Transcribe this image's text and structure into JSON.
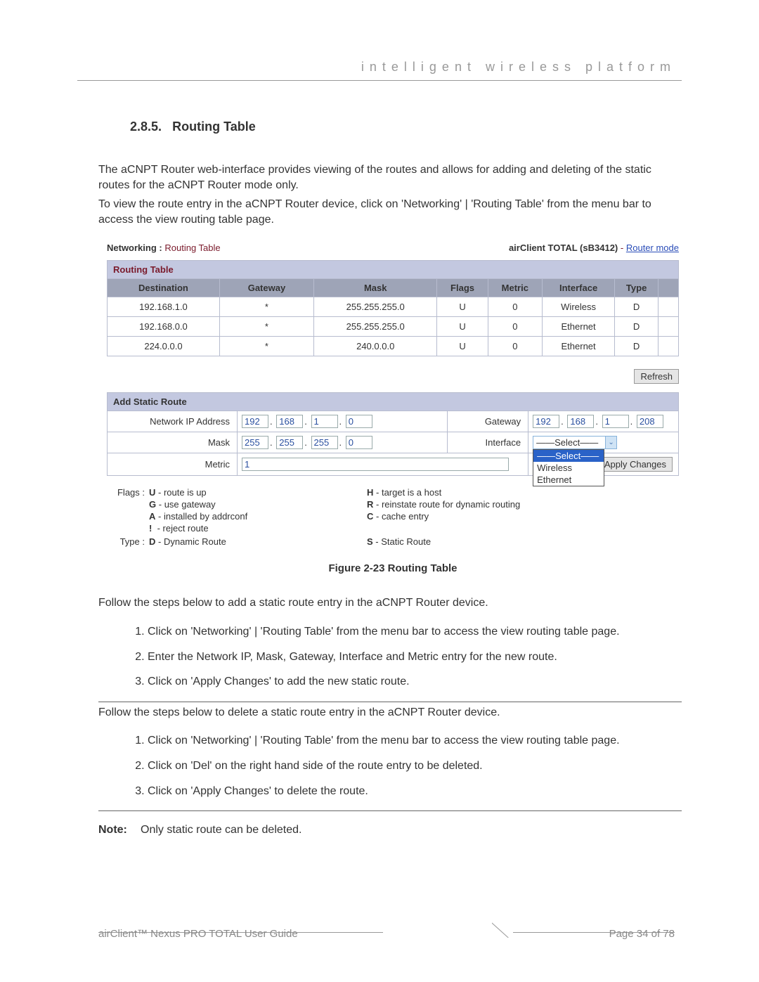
{
  "header": {
    "tagline": "intelligent  wireless  platform"
  },
  "section": {
    "number": "2.8.5.",
    "title": "Routing Table",
    "para1": "The aCNPT Router web-interface provides viewing of the routes and allows for adding and deleting of the static routes for the aCNPT Router mode only.",
    "para2": "To view the route entry in the aCNPT Router device, click on 'Networking' | 'Routing Table' from the menu bar to access the view routing table page."
  },
  "screenshot": {
    "breadcrumb_label": "Networking :",
    "breadcrumb_page": "Routing Table",
    "device": "airClient TOTAL (sB3412)",
    "mode_sep": " - ",
    "mode_link": "Router mode",
    "routing_table": {
      "title": "Routing Table",
      "columns": [
        "Destination",
        "Gateway",
        "Mask",
        "Flags",
        "Metric",
        "Interface",
        "Type",
        ""
      ],
      "rows": [
        [
          "192.168.1.0",
          "*",
          "255.255.255.0",
          "U",
          "0",
          "Wireless",
          "D",
          ""
        ],
        [
          "192.168.0.0",
          "*",
          "255.255.255.0",
          "U",
          "0",
          "Ethernet",
          "D",
          ""
        ],
        [
          "224.0.0.0",
          "*",
          "240.0.0.0",
          "U",
          "0",
          "Ethernet",
          "D",
          ""
        ]
      ],
      "col_widths": [
        "155px",
        "130px",
        "170px",
        "70px",
        "75px",
        "100px",
        "60px",
        "28px"
      ]
    },
    "refresh_btn": "Refresh",
    "add_route": {
      "title": "Add Static Route",
      "network_ip_label": "Network IP Address",
      "gateway_label": "Gateway",
      "mask_label": "Mask",
      "interface_label": "Interface",
      "metric_label": "Metric",
      "network_ip": [
        "192",
        "168",
        "1",
        "0"
      ],
      "gateway": [
        "192",
        "168",
        "1",
        "208"
      ],
      "mask": [
        "255",
        "255",
        "255",
        "0"
      ],
      "metric": "1",
      "interface_selected": "——Select——",
      "interface_options": [
        "——Select——",
        "Wireless",
        "Ethernet"
      ],
      "apply_btn": "Apply Changes"
    },
    "legend": {
      "flags_label": "Flags :",
      "type_label": "Type :",
      "flags": [
        {
          "k": "U",
          "v": "route is up"
        },
        {
          "k": "G",
          "v": "use gateway"
        },
        {
          "k": "A",
          "v": "installed by addrconf"
        },
        {
          "k": "!",
          "v": "reject route"
        }
      ],
      "flags_right": [
        {
          "k": "H",
          "v": "target is a host"
        },
        {
          "k": "R",
          "v": "reinstate route for dynamic routing"
        },
        {
          "k": "C",
          "v": "cache entry"
        }
      ],
      "types": [
        {
          "k": "D",
          "v": "Dynamic Route"
        },
        {
          "k": "S",
          "v": "Static Route"
        }
      ]
    },
    "figure_caption": "Figure 2-23 Routing Table"
  },
  "instructions": {
    "add_intro": "Follow the steps below to add a static route entry in the aCNPT Router device.",
    "add_steps": [
      "Click on 'Networking' | 'Routing Table' from the menu bar to access the view routing table page.",
      "Enter the Network IP, Mask, Gateway, Interface and Metric entry for the new route.",
      "Click on 'Apply Changes' to add the new static route."
    ],
    "del_intro": "Follow the steps below to delete a static route entry in the aCNPT Router device.",
    "del_steps": [
      "Click on 'Networking' | 'Routing Table' from the menu bar to access the view routing table page.",
      "Click on 'Del' on the right hand side of the route entry to be deleted.",
      "Click on 'Apply Changes' to delete the route."
    ],
    "note_label": "Note:",
    "note_text": "Only static route can be deleted."
  },
  "footer": {
    "left": "airClient™ Nexus PRO TOTAL User Guide",
    "right": "Page 34 of 78"
  },
  "colors": {
    "header_blue": "#c3c8e0",
    "header_gray": "#9ea4b7",
    "border": "#b7bccf",
    "maroon": "#7a1a2b",
    "link_blue": "#2a4db8",
    "input_text": "#2a50a0"
  }
}
